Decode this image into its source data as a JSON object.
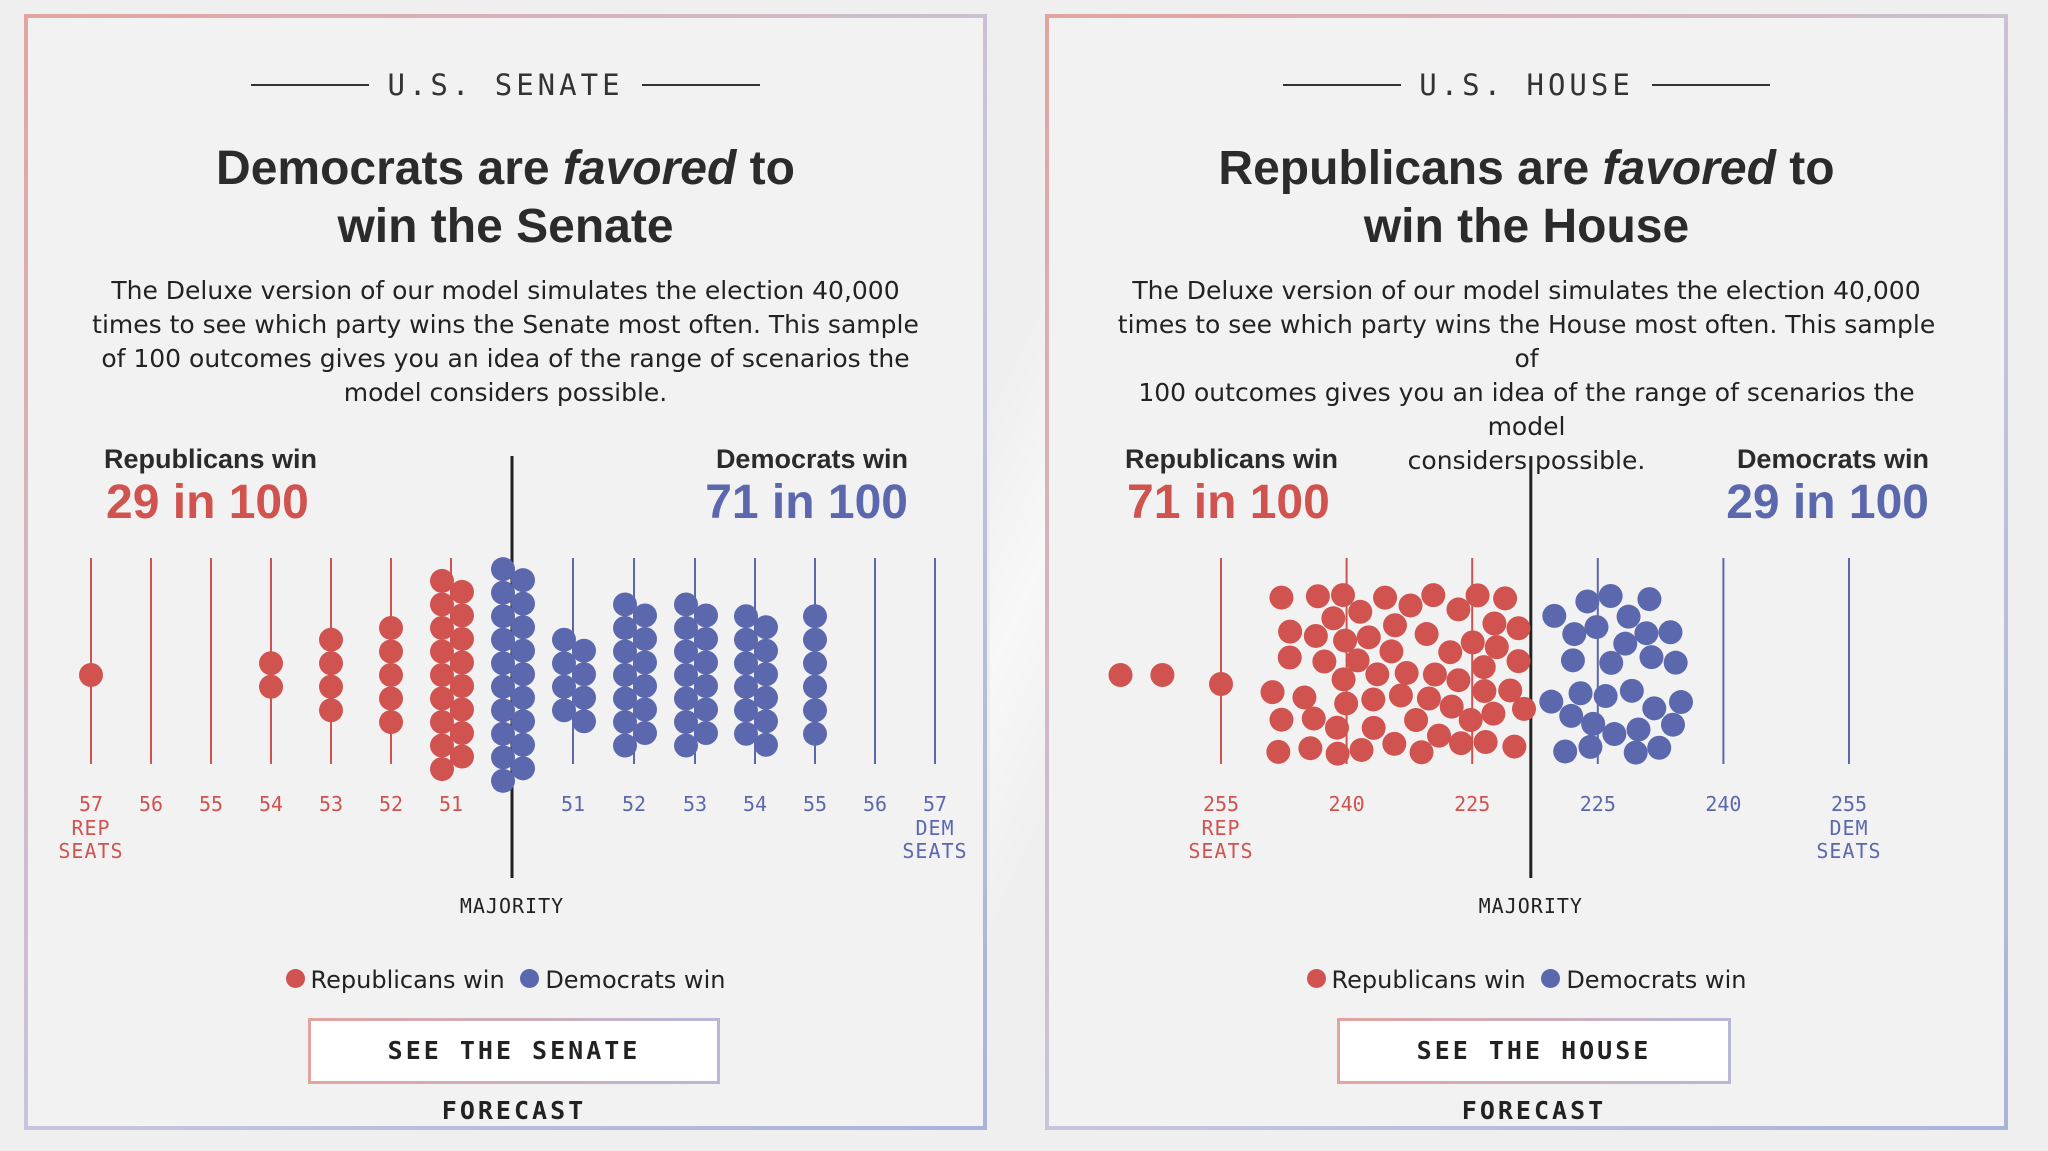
{
  "colors": {
    "rep": "#d0534f",
    "dem": "#5c68ad",
    "ink": "#222222"
  },
  "panels": [
    {
      "id": "senate",
      "kicker": "U.S. SENATE",
      "headline_pre": "Democrats are ",
      "headline_em": "favored",
      "headline_mid": " to",
      "headline_line2": "win the Senate",
      "blurb_lines": [
        "The Deluxe version of our model simulates the election 40,000",
        "times to see which party wins the Senate most often. This sample",
        "of 100 outcomes gives you an idea of the range of scenarios the",
        "model considers possible."
      ],
      "left_label": "Republicans win",
      "left_value": "29 in 100",
      "right_label": "Democrats win",
      "right_value": "71 in 100",
      "majority_label": "MAJORITY",
      "legend_rep": "Republicans win",
      "legend_dem": "Democrats win",
      "cta": "SEE THE SENATE FORECAST"
    },
    {
      "id": "house",
      "kicker": "U.S. HOUSE",
      "headline_pre": "Republicans are ",
      "headline_em": "favored",
      "headline_mid": " to",
      "headline_line2": "win the House",
      "blurb_lines": [
        "The Deluxe version of our model simulates the election 40,000",
        "times to see which party wins the House most often. This sample of",
        "100 outcomes gives you an idea of the range of scenarios the model",
        "considers possible."
      ],
      "left_label": "Republicans win",
      "left_value": "71 in 100",
      "right_label": "Democrats win",
      "right_value": "29 in 100",
      "majority_label": "MAJORITY",
      "legend_rep": "Republicans win",
      "legend_dem": "Democrats win",
      "cta": "SEE THE HOUSE FORECAST"
    }
  ],
  "chart_data": [
    {
      "type": "scatter",
      "title": "U.S. SENATE",
      "axis": "seats",
      "ticks": [
        {
          "label": "57",
          "sub": [
            "REP",
            "SEATS"
          ],
          "party": "rep"
        },
        {
          "label": "56",
          "party": "rep"
        },
        {
          "label": "55",
          "party": "rep"
        },
        {
          "label": "54",
          "party": "rep"
        },
        {
          "label": "53",
          "party": "rep"
        },
        {
          "label": "52",
          "party": "rep"
        },
        {
          "label": "51",
          "party": "rep"
        },
        {
          "label": "",
          "party": "majority"
        },
        {
          "label": "51",
          "party": "dem"
        },
        {
          "label": "52",
          "party": "dem"
        },
        {
          "label": "53",
          "party": "dem"
        },
        {
          "label": "54",
          "party": "dem"
        },
        {
          "label": "55",
          "party": "dem"
        },
        {
          "label": "56",
          "party": "dem"
        },
        {
          "label": "57",
          "sub": [
            "DEM",
            "SEATS"
          ],
          "party": "dem"
        }
      ],
      "series": [
        {
          "name": "Republicans win",
          "party": "rep",
          "counts": [
            {
              "outcome": "57 REP",
              "n": 1
            },
            {
              "outcome": "54 REP",
              "n": 2
            },
            {
              "outcome": "53 REP",
              "n": 4
            },
            {
              "outcome": "52 REP",
              "n": 5
            },
            {
              "outcome": "51 REP",
              "n": 17
            }
          ]
        },
        {
          "name": "Democrats win",
          "party": "dem",
          "counts": [
            {
              "outcome": "50 DEM (majority)",
              "n": 19
            },
            {
              "outcome": "51 DEM",
              "n": 8
            },
            {
              "outcome": "52 DEM",
              "n": 13
            },
            {
              "outcome": "53 DEM",
              "n": 13
            },
            {
              "outcome": "54 DEM",
              "n": 12
            },
            {
              "outcome": "55 DEM",
              "n": 6
            }
          ]
        }
      ],
      "totals": {
        "rep_wins": 29,
        "dem_wins": 71,
        "of": 100
      }
    },
    {
      "type": "scatter",
      "title": "U.S. HOUSE",
      "axis": "seats",
      "ticks": [
        {
          "label": "255",
          "sub": [
            "REP",
            "SEATS"
          ],
          "party": "rep",
          "seats_rep": 255
        },
        {
          "label": "240",
          "party": "rep",
          "seats_rep": 240
        },
        {
          "label": "225",
          "party": "rep",
          "seats_rep": 225
        },
        {
          "label": "",
          "party": "majority",
          "seats_rep": 218
        },
        {
          "label": "225",
          "party": "dem",
          "seats_rep": 210
        },
        {
          "label": "240",
          "party": "dem",
          "seats_rep": 195
        },
        {
          "label": "255",
          "sub": [
            "DEM",
            "SEATS"
          ],
          "party": "dem",
          "seats_rep": 180
        }
      ],
      "series": [
        {
          "name": "Republicans win",
          "party": "rep",
          "n": 71,
          "approx_range_rep_seats": [
            218,
            267
          ]
        },
        {
          "name": "Democrats win",
          "party": "dem",
          "n": 29,
          "approx_range_rep_seats": [
            197,
            217
          ]
        }
      ],
      "totals": {
        "rep_wins": 71,
        "dem_wins": 29,
        "of": 100
      }
    }
  ]
}
